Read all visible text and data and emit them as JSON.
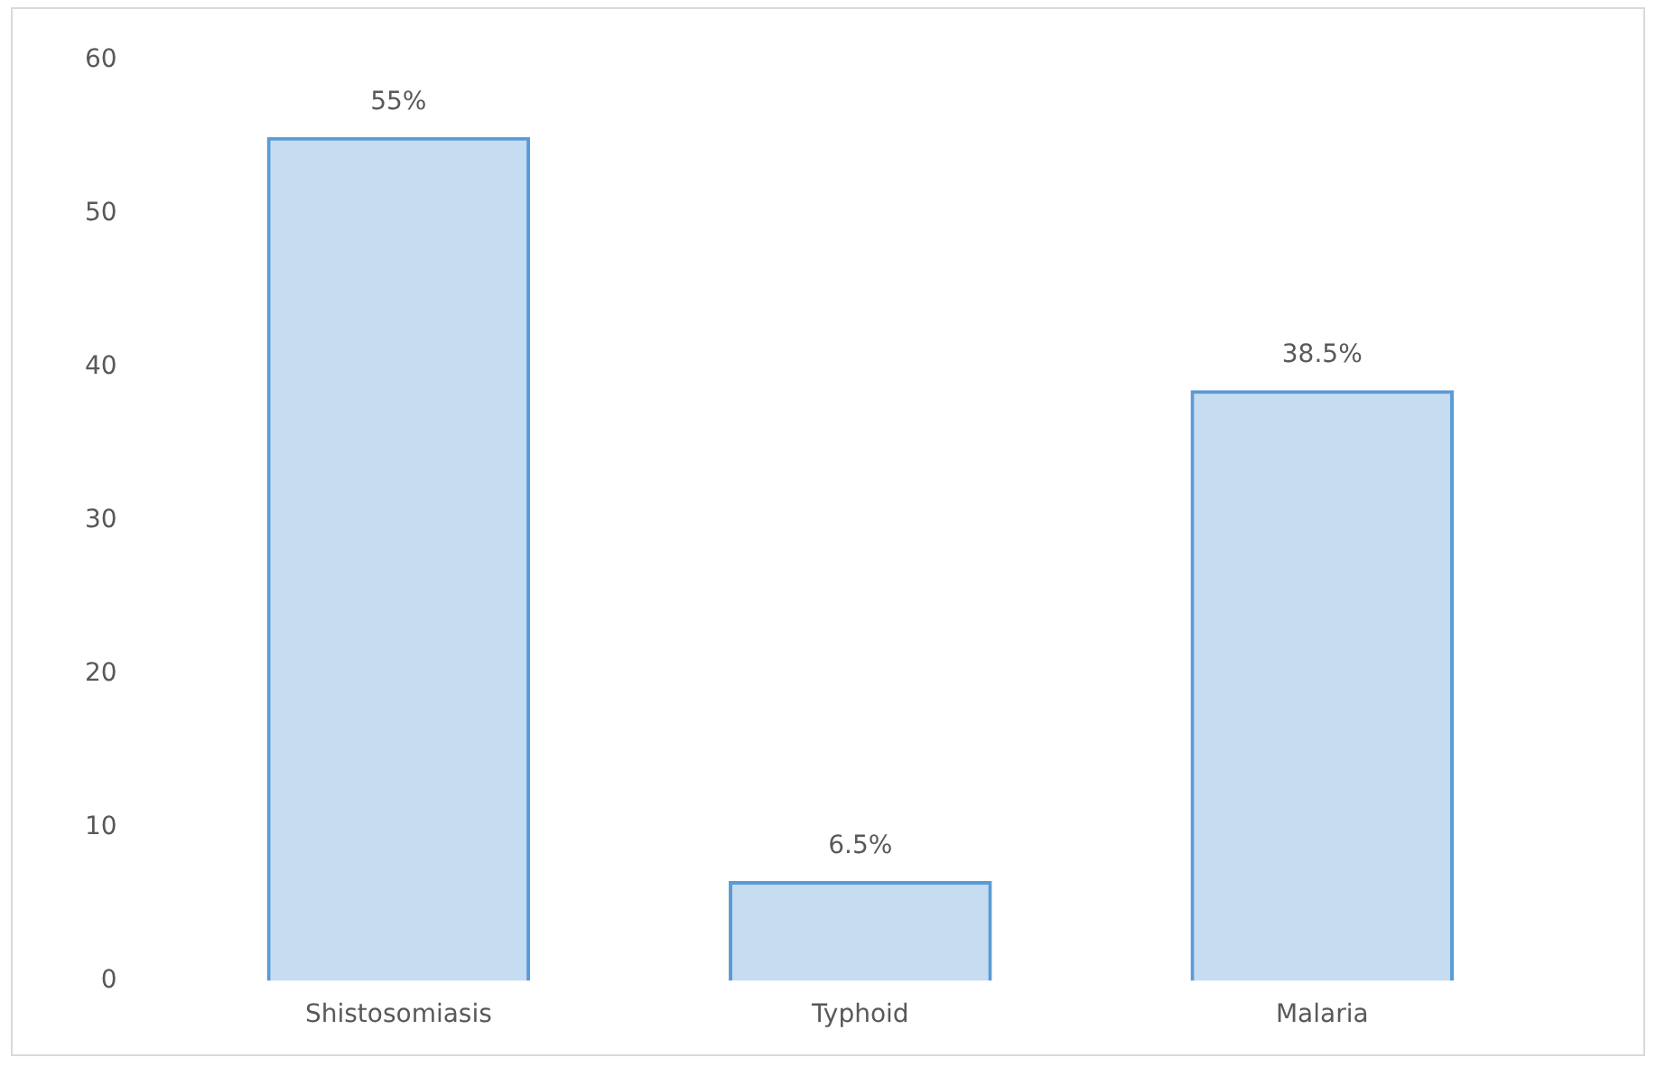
{
  "chart_data": {
    "type": "bar",
    "categories": [
      "Shistosomiasis",
      "Typhoid",
      "Malaria"
    ],
    "values": [
      55,
      6.5,
      38.5
    ],
    "value_labels": [
      "55%",
      "6.5%",
      "38.5%"
    ],
    "color": "#5b9bd5",
    "ylim": [
      0,
      60
    ],
    "yticks": [
      0,
      10,
      20,
      30,
      40,
      50,
      60
    ],
    "grid": false,
    "legend": false
  }
}
